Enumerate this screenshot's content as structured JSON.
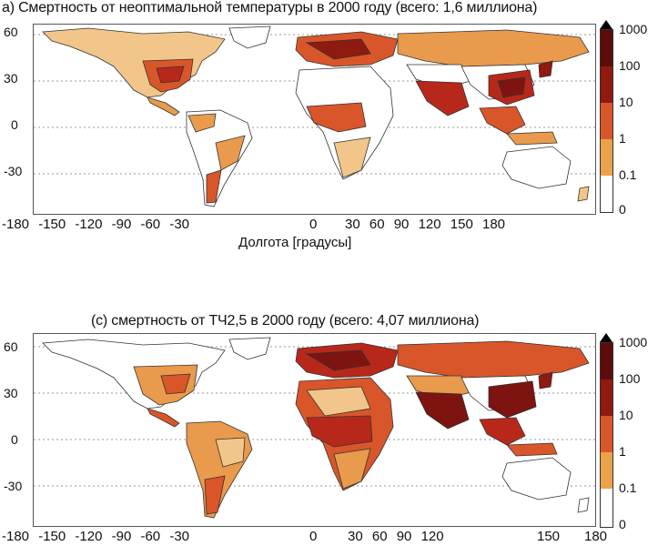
{
  "panel_a": {
    "title": "а) Смертность от неоптимальной температуры в 2000 году (всего: 1,6 миллиона)",
    "x_ticks": [
      "-180",
      "-150",
      "-120",
      "-90",
      "-60",
      "-30",
      "0",
      "30",
      "60",
      "90",
      "120",
      "150",
      "180"
    ],
    "y_ticks": [
      "60",
      "30",
      "0",
      "-30"
    ],
    "x_axis_title": "Долгота [градусы]"
  },
  "panel_c": {
    "title": "(с) смертность от ТЧ2,5 в 2000 году (всего: 4,07 миллиона)",
    "x_ticks": [
      "-180",
      "-150",
      "-120",
      "-90",
      "-60",
      "-30",
      "0",
      "30",
      "60",
      "90",
      "120",
      "150",
      "180"
    ],
    "y_ticks": [
      "60",
      "30",
      "0",
      "-30"
    ]
  },
  "colorbar": {
    "labels": [
      "1000",
      "100",
      "10",
      "1",
      "0.1",
      "0"
    ],
    "colors": [
      "#5e0b0b",
      "#8f1a10",
      "#c9341e",
      "#e3612e",
      "#eba24a",
      "#ffffff"
    ]
  },
  "colors": {
    "land_base": "#f2c58a",
    "land_low": "#e99a4c",
    "land_mid": "#d9562a",
    "land_high": "#b8281a",
    "land_very_high": "#7d1410",
    "empty_land": "#ffffff",
    "outline": "#333333"
  }
}
